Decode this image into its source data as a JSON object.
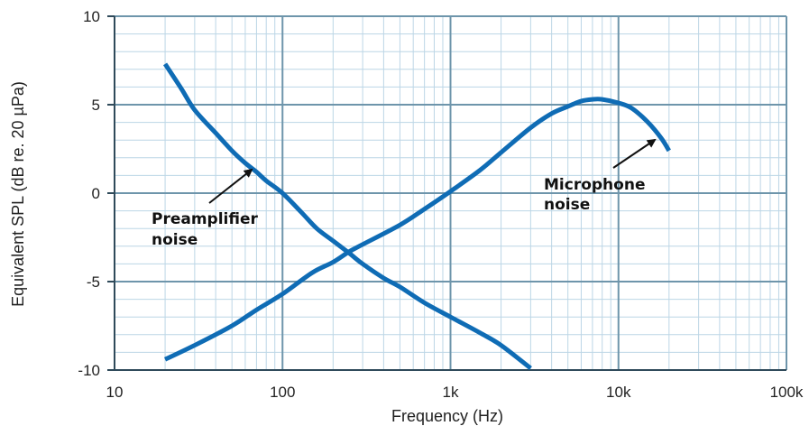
{
  "chart_data": {
    "type": "line",
    "xlabel": "Frequency (Hz)",
    "ylabel": "Equivalent SPL (dB re. 20 µPa)",
    "xscale": "log",
    "xlim": [
      10,
      100000
    ],
    "ylim": [
      -10,
      10
    ],
    "grid": true,
    "x_tick_labels": [
      {
        "value": 10,
        "label": "10"
      },
      {
        "value": 100,
        "label": "100"
      },
      {
        "value": 1000,
        "label": "1k"
      },
      {
        "value": 10000,
        "label": "10k"
      },
      {
        "value": 100000,
        "label": "100k"
      }
    ],
    "y_tick_labels": [
      {
        "value": 10,
        "label": "10"
      },
      {
        "value": 5,
        "label": "5"
      },
      {
        "value": 0,
        "label": "0"
      },
      {
        "value": -5,
        "label": "-5"
      },
      {
        "value": -10,
        "label": "-10"
      }
    ],
    "series": [
      {
        "name": "Preamplifier noise",
        "color": "#0f6cb5",
        "points": [
          [
            20,
            7.3
          ],
          [
            25,
            5.9
          ],
          [
            30,
            4.7
          ],
          [
            40,
            3.4
          ],
          [
            50,
            2.4
          ],
          [
            60,
            1.7
          ],
          [
            70,
            1.2
          ],
          [
            80,
            0.7
          ],
          [
            100,
            0.0
          ],
          [
            130,
            -1.1
          ],
          [
            160,
            -2.0
          ],
          [
            200,
            -2.7
          ],
          [
            250,
            -3.4
          ],
          [
            300,
            -4.0
          ],
          [
            400,
            -4.8
          ],
          [
            500,
            -5.3
          ],
          [
            700,
            -6.2
          ],
          [
            1000,
            -7.0
          ],
          [
            1500,
            -7.9
          ],
          [
            2000,
            -8.6
          ],
          [
            3000,
            -9.9
          ]
        ]
      },
      {
        "name": "Microphone noise",
        "color": "#0f6cb5",
        "points": [
          [
            20,
            -9.4
          ],
          [
            30,
            -8.6
          ],
          [
            50,
            -7.5
          ],
          [
            70,
            -6.6
          ],
          [
            100,
            -5.7
          ],
          [
            150,
            -4.5
          ],
          [
            200,
            -3.9
          ],
          [
            250,
            -3.3
          ],
          [
            300,
            -2.9
          ],
          [
            500,
            -1.8
          ],
          [
            700,
            -0.9
          ],
          [
            1000,
            0.1
          ],
          [
            1500,
            1.3
          ],
          [
            2000,
            2.3
          ],
          [
            3000,
            3.7
          ],
          [
            4000,
            4.5
          ],
          [
            5000,
            4.9
          ],
          [
            6000,
            5.2
          ],
          [
            7000,
            5.3
          ],
          [
            8000,
            5.3
          ],
          [
            10000,
            5.1
          ],
          [
            12000,
            4.8
          ],
          [
            15000,
            4.0
          ],
          [
            18000,
            3.1
          ],
          [
            20000,
            2.4
          ]
        ]
      }
    ],
    "annotations": [
      {
        "lines": [
          "Preamplifier",
          "noise"
        ],
        "series": "Preamplifier noise"
      },
      {
        "lines": [
          "Microphone",
          "noise"
        ],
        "series": "Microphone noise"
      }
    ]
  }
}
